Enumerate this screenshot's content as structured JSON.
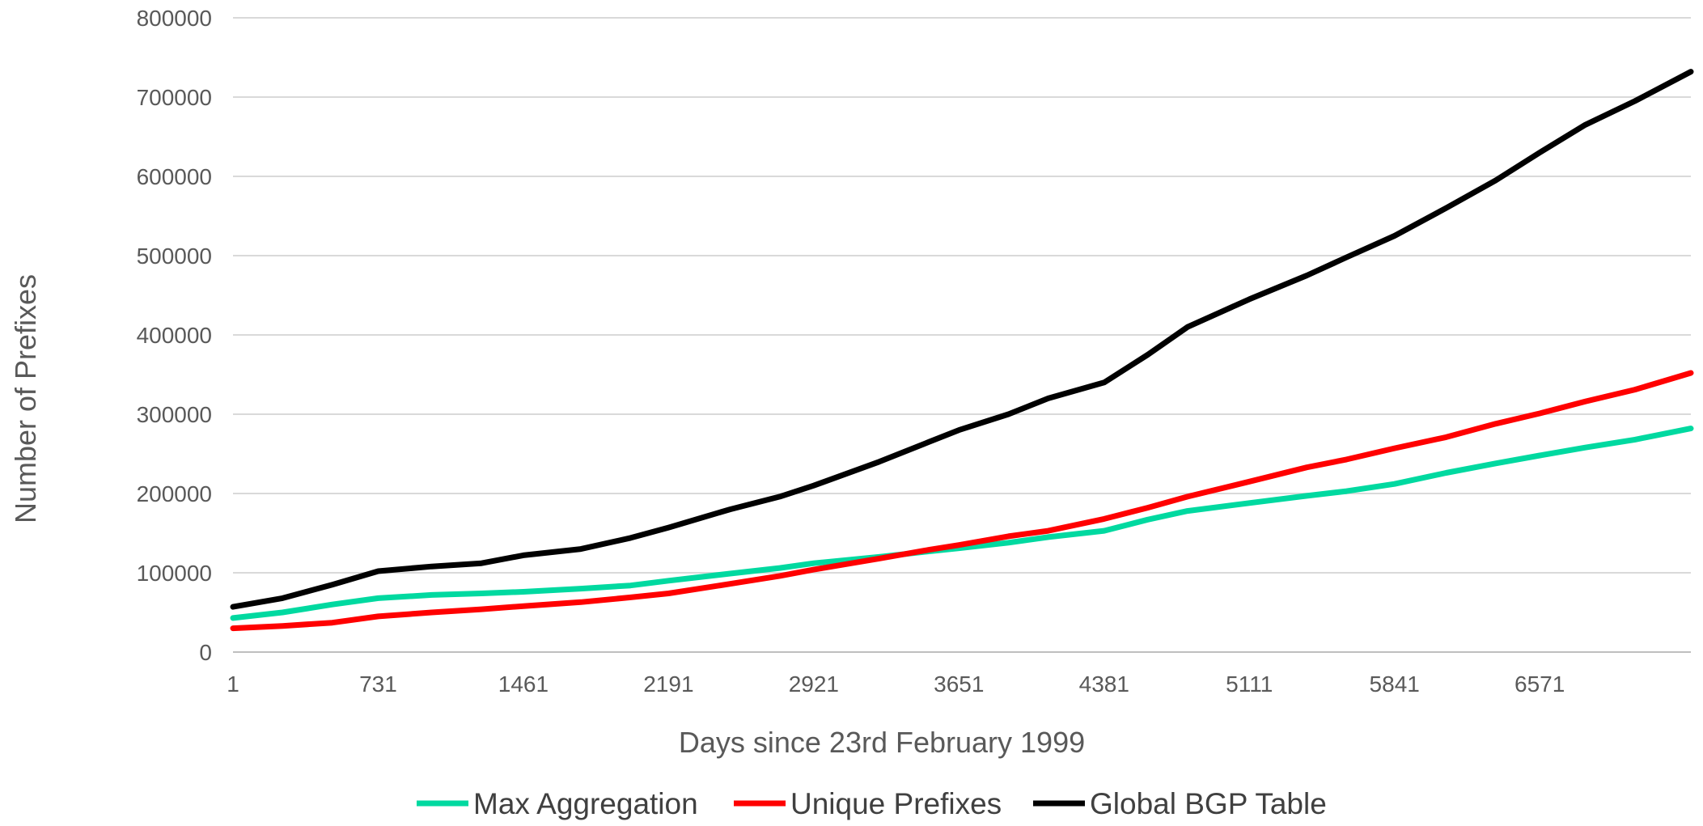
{
  "chart_data": {
    "type": "line",
    "title": "",
    "xlabel": "Days since 23rd February 1999",
    "ylabel": "Number of Prefixes",
    "xlim": [
      1,
      7331
    ],
    "ylim": [
      0,
      800000
    ],
    "y_ticks": [
      0,
      100000,
      200000,
      300000,
      400000,
      500000,
      600000,
      700000,
      800000
    ],
    "x_ticks": [
      1,
      731,
      1461,
      2191,
      2921,
      3651,
      4381,
      5111,
      5841,
      6571
    ],
    "grid": "horizontal",
    "legend_position": "bottom",
    "series": [
      {
        "name": "Max Aggregation",
        "color": "#00D9A0",
        "x": [
          1,
          250,
          500,
          731,
          1000,
          1250,
          1461,
          1750,
          2000,
          2191,
          2500,
          2750,
          2921,
          3250,
          3500,
          3651,
          3900,
          4100,
          4381,
          4600,
          4800,
          5111,
          5400,
          5600,
          5841,
          6100,
          6350,
          6571,
          6800,
          7050,
          7331
        ],
        "values": [
          43000,
          50000,
          60000,
          68000,
          72000,
          74000,
          76000,
          80000,
          84000,
          90000,
          99000,
          106000,
          112000,
          120000,
          127000,
          131000,
          138000,
          145000,
          153000,
          167000,
          178000,
          188000,
          197000,
          203000,
          212000,
          226000,
          238000,
          248000,
          258000,
          268000,
          282000
        ]
      },
      {
        "name": "Unique Prefixes",
        "color": "#FF0000",
        "x": [
          1,
          250,
          500,
          731,
          1000,
          1250,
          1461,
          1750,
          2000,
          2191,
          2500,
          2750,
          2921,
          3250,
          3500,
          3651,
          3900,
          4100,
          4381,
          4600,
          4800,
          5111,
          5400,
          5600,
          5841,
          6100,
          6350,
          6571,
          6800,
          7050,
          7331
        ],
        "values": [
          30000,
          33000,
          37000,
          45000,
          50000,
          54000,
          58000,
          63000,
          69000,
          74000,
          86000,
          96000,
          104000,
          118000,
          129000,
          135000,
          146000,
          153000,
          168000,
          182000,
          196000,
          215000,
          233000,
          243000,
          257000,
          271000,
          288000,
          301000,
          316000,
          331000,
          352000
        ]
      },
      {
        "name": "Global BGP Table",
        "color": "#000000",
        "x": [
          1,
          250,
          500,
          731,
          1000,
          1250,
          1461,
          1750,
          2000,
          2191,
          2500,
          2750,
          2921,
          3250,
          3500,
          3651,
          3900,
          4100,
          4381,
          4600,
          4800,
          5111,
          5400,
          5600,
          5841,
          6100,
          6350,
          6571,
          6800,
          7050,
          7331
        ],
        "values": [
          57000,
          68000,
          85000,
          102000,
          108000,
          112000,
          122000,
          130000,
          144000,
          157000,
          180000,
          196000,
          210000,
          240000,
          265000,
          280000,
          300000,
          320000,
          340000,
          375000,
          410000,
          445000,
          475000,
          498000,
          525000,
          560000,
          595000,
          630000,
          665000,
          695000,
          732000
        ]
      }
    ]
  }
}
